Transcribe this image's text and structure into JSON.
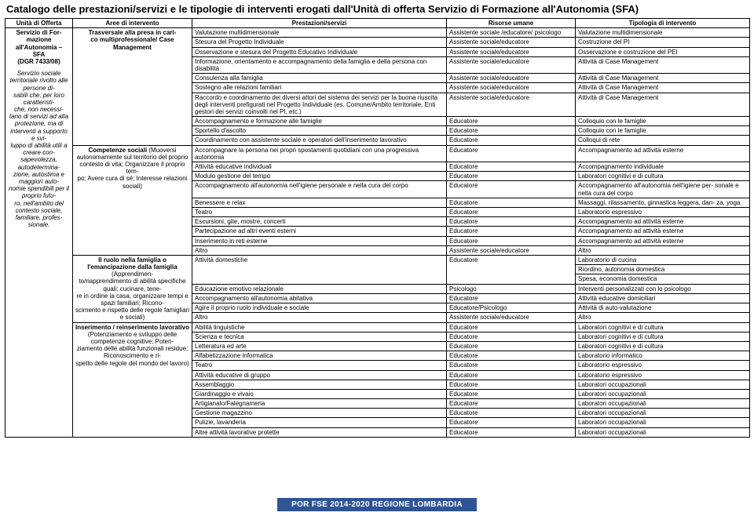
{
  "title": "Catalogo delle prestazioni/servizi e le tipologie di interventi erogati dall'Unità di offerta Servizio di Formazione all'Autonomia (SFA)",
  "headers": {
    "c1": "Unità di Offerta",
    "c2": "Aree di intervento",
    "c3": "Prestazioni/servizi",
    "c4": "Risorse umane",
    "c5": "Tipologia di intervento"
  },
  "unit": {
    "bold": "Servizio di For-\nmazione\nall'Autonomia –\nSFA\n(DGR 7433/08)",
    "italic": "Servizio sociale territoriale rivolto alle persone di-\nsabili che, per loro caratteristi-\nche, non necessi-\ntano di servizi ad alta protezione, ma di interventi a supporto e svi-\nluppo di abilità utili a creare con-\nsapevolezza, autodetermina-\nzione, autostima e maggiori auto-\nnomie spendibili per il proprio futu-\nro, nell'ambito del contesto sociale, familiare, profes-\nsionale."
  },
  "areas": {
    "a1": {
      "bold": "Trasversale alla presa in cari-\nco multiprofessionale/ Case Management",
      "plain": ""
    },
    "a2": {
      "bold": "Competenze sociali",
      "plain": " (Muoversi autonomamente sul territorio del proprio contesto di vita; Organizzare il proprio tem-\npo; Avere cura di sé; Interesse relazioni sociali)"
    },
    "a3": {
      "bold": "Il ruolo nella famiglia o l'emancipazione dalla famiglia",
      "plain": " (Apprendimen-\nto/riapprendimento di abilità specifiche quali: cucinare, tene-\nre in ordine la casa, organizzare tempi e spazi familiari; Ricono-\nscimento e rispetto delle regole famigliari e sociali)"
    },
    "a4": {
      "bold": "Inserimento / reinserimento lavorativo",
      "plain": " (Potenziamento e sviluppo delle competenze cognitive; Poten-\nziamento delle abilità funzionali residue; Riconoscimento e ri-\nspetto delle regole del mondo del lavoro)"
    }
  },
  "rows": [
    {
      "area": "a1",
      "p": "Valutazione multidimensionale",
      "r": "Assistente sociale /educatore/ psicologo",
      "t": "Valutazione multidimensionale"
    },
    {
      "area": "a1",
      "p": "Stesura del Progetto Individuale",
      "r": "Assistente sociale/educatore",
      "t": "Costruzione del PI"
    },
    {
      "area": "a1",
      "p": "Osservazione e stesura del Progetto Educativo Individuale",
      "r": "Assistente sociale/educatore",
      "t": "Osservazione e costruzione del PEI"
    },
    {
      "area": "a1",
      "p": "Informazione, orientamento e accompagnamento della famiglia e della persona con disabilità",
      "r": "Assistente sociale/educatore",
      "t": "Attività di Case Management"
    },
    {
      "area": "a1",
      "p": "Consulenza alla famiglia",
      "r": "Assistente sociale/educatore",
      "t": "Attività di Case Management"
    },
    {
      "area": "a1",
      "p": "Sostegno alle relazioni familiari",
      "r": "Assistente sociale/educatore",
      "t": "Attività di Case Management"
    },
    {
      "area": "a1",
      "p": "Raccordo e coordinamento dei diversi attori del sistema dei servizi per la buona riuscita degli interventi prefigurati nel Progetto Individuale (es. Comune/Ambito territoriale, Enti gestori dei servizi coinvolti nel PI, etc.)",
      "r": "Assistente sociale/educatore",
      "t": "Attività di Case Management"
    },
    {
      "area": "a1",
      "p": "Accompagnamento e formazione alle famiglie",
      "r": "Educatore",
      "t": "Colloquio con le famiglie"
    },
    {
      "area": "a1",
      "p": "Sportello d'ascolto",
      "r": "Educatore",
      "t": "Colloquio con le famiglie"
    },
    {
      "area": "a1",
      "p": "Coordinamento con assistente sociale e operatori dell'inserimento lavorativo",
      "r": "Educatore",
      "t": "Colloqui di rete"
    },
    {
      "area": "a2",
      "p": "Accompagnare la persona nei propri spostamenti quotidiani con una progressiva autonomia",
      "r": "Educatore",
      "t": "Accompagnamento ad attività esterne"
    },
    {
      "area": "a2",
      "p": "Attività educative individuali",
      "r": "Educatore",
      "t": "Accompagnamento individuale"
    },
    {
      "area": "a2",
      "p": "Modulo gestione del tempo",
      "r": "Educatore",
      "t": "Laboratori cognitivi e di cultura"
    },
    {
      "area": "a2",
      "p": "Accompagnamento all'autonomia nell'igiene personale e nella cura del corpo",
      "r": "Educatore",
      "t": "Accompagnamento all'autonomia nell'igiene per-\nsonale e nella cura del corpo"
    },
    {
      "area": "a2",
      "p": "Benessere e relax",
      "r": "Educatore",
      "t": "Massaggi, rilassamento, ginnastica leggera, dan-\nza, yoga"
    },
    {
      "area": "a2",
      "p": "Teatro",
      "r": "Educatore",
      "t": "Laboratorio espressivo"
    },
    {
      "area": "a2",
      "p": "Escursioni, gite, mostre, concerti",
      "r": "Educatore",
      "t": "Accompagnamento ad attività esterne"
    },
    {
      "area": "a2",
      "p": "Partecipazione ad altri eventi esterni",
      "r": "Educatore",
      "t": "Accompagnamento ad attività esterne"
    },
    {
      "area": "a2",
      "p": "Inserimento in reti esterne",
      "r": "Educatore",
      "t": "Accompagnamento ad attività esterne"
    },
    {
      "area": "a2",
      "p": "Altro",
      "r": "Assistente sociale/educatore",
      "t": "Altro"
    },
    {
      "area": "a3",
      "p": "Attività domestiche",
      "r": "Educatore",
      "t": "Laboratorio di cucina\nRiordino, autonomia domestica\nSpesa, economia domestica",
      "tMulti": true
    },
    {
      "area": "a3",
      "p": "Educazione emotivo relazionale",
      "r": "Psicologo",
      "t": "Interventi personalizzati con lo psicologo"
    },
    {
      "area": "a3",
      "p": "Accompagnamento all'autonomia abitativa",
      "r": "Educatore",
      "t": "Attività educative domiciliari"
    },
    {
      "area": "a3",
      "p": "Agire il proprio ruolo individuale e sociale",
      "r": "Educatore/Psicologo",
      "t": "Attività di auto-valutazione"
    },
    {
      "area": "a3",
      "p": "Altro",
      "r": "Assistente sociale/educatore",
      "t": "Altro"
    },
    {
      "area": "a4",
      "p": "Abilità linguistiche",
      "r": "Educatore",
      "t": "Laboratori cognitivi e di cultura"
    },
    {
      "area": "a4",
      "p": "Scienza e tecnica",
      "r": "Educatore",
      "t": "Laboratori cognitivi e di cultura"
    },
    {
      "area": "a4",
      "p": "Letteratura ed arte",
      "r": "Educatore",
      "t": "Laboratori cognitivi e di cultura"
    },
    {
      "area": "a4",
      "p": "Alfabetizzazione informatica",
      "r": "Educatore",
      "t": "Laboratorio informatico"
    },
    {
      "area": "a4",
      "p": "Teatro",
      "r": "Educatore",
      "t": "Laboratorio espressivo"
    },
    {
      "area": "a4",
      "p": "Attività educative di gruppo",
      "r": "Educatore",
      "t": "Laboratorio espressivo"
    },
    {
      "area": "a4",
      "p": "Assemblaggio",
      "r": "Educatore",
      "t": "Laboratori occupazionali"
    },
    {
      "area": "a4",
      "p": "Giardinaggio e vivaio",
      "r": "Educatore",
      "t": "Laboratori occupazionali"
    },
    {
      "area": "a4",
      "p": "Artigianato/Falegnameria",
      "r": "Educatore",
      "t": "Laboratori occupazionali"
    },
    {
      "area": "a4",
      "p": "Gestione magazzino",
      "r": "Educatore",
      "t": "Laboratori occupazionali"
    },
    {
      "area": "a4",
      "p": "Pulizie, lavanderia",
      "r": "Educatore",
      "t": "Laboratori occupazionali"
    },
    {
      "area": "a4",
      "p": "Altre attività lavorative protette",
      "r": "Educatore",
      "t": "Laboratori occupazionali"
    }
  ],
  "footer": "POR FSE 2014-2020 REGIONE LOMBARDIA",
  "colors": {
    "footer_bg": "#2f5496",
    "footer_fg": "#ffffff"
  }
}
